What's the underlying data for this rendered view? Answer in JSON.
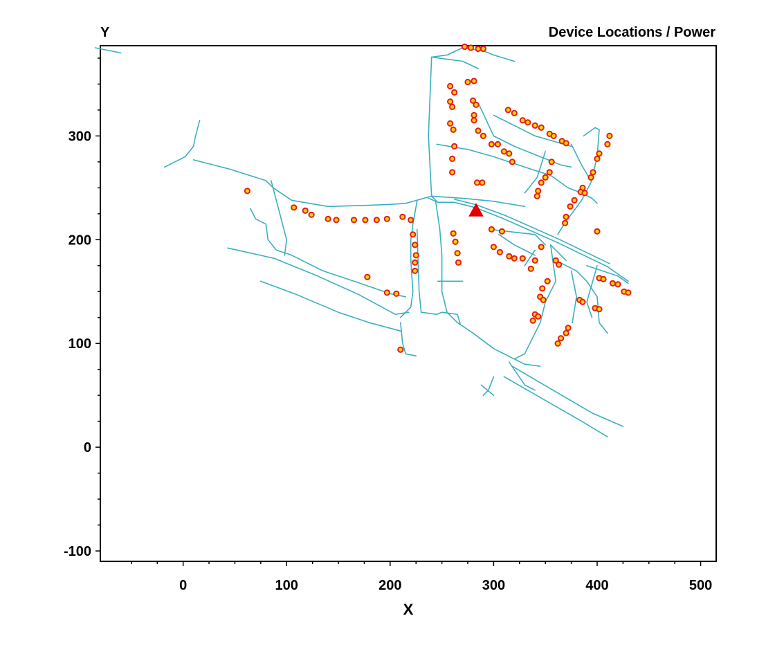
{
  "chart_data": {
    "type": "scatter",
    "title": "Device Locations / Power",
    "xlabel": "X",
    "ylabel": "Y",
    "xlim": [
      -80,
      515
    ],
    "ylim": [
      -110,
      387
    ],
    "x_ticks": [
      0,
      100,
      200,
      300,
      400,
      500
    ],
    "y_ticks": [
      -100,
      0,
      100,
      200,
      300
    ],
    "grid": false,
    "colors": {
      "network": "#3aafc0",
      "device_fill": "#ffd400",
      "device_edge": "#e21c1c",
      "source": "#e00000",
      "axis": "#000000"
    },
    "series": [
      {
        "marker": "circle",
        "points": [
          [
            272,
            386
          ],
          [
            278,
            385
          ],
          [
            285,
            384
          ],
          [
            290,
            384
          ],
          [
            275,
            352
          ],
          [
            281,
            353
          ],
          [
            258,
            348
          ],
          [
            262,
            342
          ],
          [
            280,
            334
          ],
          [
            283,
            330
          ],
          [
            281,
            320
          ],
          [
            281,
            315
          ],
          [
            258,
            333
          ],
          [
            260,
            328
          ],
          [
            258,
            312
          ],
          [
            261,
            306
          ],
          [
            262,
            290
          ],
          [
            260,
            278
          ],
          [
            260,
            265
          ],
          [
            284,
            255
          ],
          [
            289,
            255
          ],
          [
            285,
            305
          ],
          [
            290,
            300
          ],
          [
            298,
            292
          ],
          [
            304,
            292
          ],
          [
            310,
            285
          ],
          [
            315,
            283
          ],
          [
            318,
            275
          ],
          [
            314,
            325
          ],
          [
            320,
            322
          ],
          [
            328,
            315
          ],
          [
            333,
            313
          ],
          [
            340,
            310
          ],
          [
            346,
            308
          ],
          [
            354,
            302
          ],
          [
            358,
            300
          ],
          [
            366,
            295
          ],
          [
            370,
            293
          ],
          [
            412,
            300
          ],
          [
            410,
            292
          ],
          [
            402,
            283
          ],
          [
            400,
            278
          ],
          [
            396,
            265
          ],
          [
            394,
            260
          ],
          [
            386,
            250
          ],
          [
            384,
            246
          ],
          [
            388,
            245
          ],
          [
            356,
            275
          ],
          [
            354,
            265
          ],
          [
            350,
            260
          ],
          [
            346,
            255
          ],
          [
            343,
            247
          ],
          [
            342,
            242
          ],
          [
            378,
            238
          ],
          [
            374,
            232
          ],
          [
            370,
            222
          ],
          [
            369,
            216
          ],
          [
            400,
            208
          ],
          [
            62,
            247
          ],
          [
            107,
            231
          ],
          [
            118,
            228
          ],
          [
            124,
            224
          ],
          [
            140,
            220
          ],
          [
            148,
            219
          ],
          [
            165,
            219
          ],
          [
            176,
            219
          ],
          [
            187,
            219
          ],
          [
            197,
            220
          ],
          [
            212,
            222
          ],
          [
            220,
            219
          ],
          [
            222,
            205
          ],
          [
            224,
            195
          ],
          [
            225,
            185
          ],
          [
            224,
            178
          ],
          [
            224,
            170
          ],
          [
            261,
            206
          ],
          [
            263,
            198
          ],
          [
            265,
            187
          ],
          [
            266,
            178
          ],
          [
            298,
            210
          ],
          [
            308,
            208
          ],
          [
            300,
            193
          ],
          [
            306,
            188
          ],
          [
            315,
            184
          ],
          [
            320,
            182
          ],
          [
            328,
            182
          ],
          [
            336,
            172
          ],
          [
            340,
            180
          ],
          [
            346,
            193
          ],
          [
            363,
            176
          ],
          [
            360,
            180
          ],
          [
            352,
            160
          ],
          [
            347,
            153
          ],
          [
            345,
            145
          ],
          [
            348,
            142
          ],
          [
            340,
            128
          ],
          [
            343,
            126
          ],
          [
            338,
            122
          ],
          [
            372,
            115
          ],
          [
            370,
            110
          ],
          [
            365,
            105
          ],
          [
            362,
            100
          ],
          [
            383,
            142
          ],
          [
            386,
            140
          ],
          [
            398,
            134
          ],
          [
            402,
            133
          ],
          [
            402,
            163
          ],
          [
            406,
            162
          ],
          [
            415,
            158
          ],
          [
            420,
            157
          ],
          [
            426,
            150
          ],
          [
            430,
            149
          ],
          [
            178,
            164
          ],
          [
            197,
            149
          ],
          [
            206,
            148
          ],
          [
            210,
            94
          ]
        ]
      },
      {
        "marker": "triangle",
        "points": [
          [
            283,
            228
          ]
        ]
      }
    ],
    "network_lines": [
      [
        [
          16,
          315
        ],
        [
          12,
          300
        ],
        [
          10,
          290
        ],
        [
          2,
          280
        ],
        [
          -18,
          270
        ]
      ],
      [
        [
          10,
          277
        ],
        [
          45,
          268
        ],
        [
          80,
          257
        ],
        [
          87,
          250
        ],
        [
          105,
          238
        ],
        [
          140,
          232
        ],
        [
          175,
          233
        ],
        [
          200,
          234
        ],
        [
          215,
          235
        ],
        [
          240,
          242
        ],
        [
          270,
          240
        ],
        [
          300,
          237
        ],
        [
          330,
          232
        ]
      ],
      [
        [
          240,
          242
        ],
        [
          246,
          236
        ],
        [
          262,
          236
        ],
        [
          282,
          231
        ],
        [
          310,
          220
        ],
        [
          360,
          198
        ],
        [
          410,
          174
        ]
      ],
      [
        [
          262,
          239
        ],
        [
          282,
          234
        ],
        [
          312,
          223
        ],
        [
          362,
          201
        ],
        [
          412,
          177
        ]
      ],
      [
        [
          410,
          174
        ],
        [
          430,
          160
        ]
      ],
      [
        [
          240,
          242
        ],
        [
          237,
          300
        ],
        [
          240,
          376
        ],
        [
          255,
          378
        ],
        [
          270,
          385
        ],
        [
          290,
          382
        ],
        [
          300,
          378
        ],
        [
          320,
          372
        ]
      ],
      [
        [
          240,
          376
        ],
        [
          270,
          372
        ],
        [
          285,
          365
        ]
      ],
      [
        [
          245,
          292
        ],
        [
          275,
          287
        ],
        [
          300,
          280
        ],
        [
          330,
          270
        ],
        [
          355,
          262
        ],
        [
          372,
          250
        ],
        [
          385,
          245
        ],
        [
          393,
          241
        ],
        [
          395,
          240
        ],
        [
          400,
          235
        ]
      ],
      [
        [
          286,
          330
        ],
        [
          300,
          300
        ],
        [
          320,
          290
        ],
        [
          345,
          280
        ],
        [
          365,
          272
        ],
        [
          375,
          270
        ]
      ],
      [
        [
          300,
          320
        ],
        [
          340,
          300
        ],
        [
          375,
          290
        ]
      ],
      [
        [
          387,
          300
        ],
        [
          398,
          308
        ],
        [
          402,
          306
        ],
        [
          400,
          280
        ],
        [
          394,
          255
        ],
        [
          385,
          238
        ],
        [
          368,
          215
        ],
        [
          362,
          205
        ]
      ],
      [
        [
          350,
          285
        ],
        [
          342,
          260
        ],
        [
          330,
          245
        ]
      ],
      [
        [
          375,
          292
        ],
        [
          385,
          272
        ],
        [
          392,
          260
        ]
      ],
      [
        [
          226,
          237
        ],
        [
          222,
          215
        ],
        [
          220,
          200
        ],
        [
          220,
          180
        ],
        [
          222,
          150
        ],
        [
          220,
          135
        ],
        [
          215,
          130
        ],
        [
          210,
          125
        ]
      ],
      [
        [
          237,
          240
        ],
        [
          244,
          237
        ],
        [
          248,
          210
        ],
        [
          250,
          185
        ],
        [
          250,
          150
        ],
        [
          255,
          130
        ],
        [
          265,
          120
        ],
        [
          280,
          110
        ],
        [
          300,
          95
        ],
        [
          320,
          85
        ],
        [
          330,
          80
        ],
        [
          345,
          78
        ]
      ],
      [
        [
          226,
          210
        ],
        [
          228,
          150
        ],
        [
          230,
          130
        ],
        [
          245,
          128
        ],
        [
          250,
          130
        ]
      ],
      [
        [
          246,
          160
        ],
        [
          270,
          160
        ]
      ],
      [
        [
          250,
          130
        ],
        [
          265,
          128
        ],
        [
          268,
          118
        ]
      ],
      [
        [
          296,
          210
        ],
        [
          340,
          205
        ],
        [
          350,
          195
        ]
      ],
      [
        [
          305,
          205
        ],
        [
          320,
          195
        ],
        [
          340,
          185
        ]
      ],
      [
        [
          330,
          175
        ],
        [
          340,
          190
        ]
      ],
      [
        [
          355,
          195
        ],
        [
          370,
          180
        ]
      ],
      [
        [
          355,
          195
        ],
        [
          360,
          160
        ],
        [
          350,
          140
        ],
        [
          345,
          120
        ],
        [
          330,
          90
        ],
        [
          320,
          85
        ]
      ],
      [
        [
          360,
          180
        ],
        [
          380,
          170
        ],
        [
          390,
          160
        ],
        [
          400,
          145
        ],
        [
          402,
          120
        ],
        [
          410,
          110
        ]
      ],
      [
        [
          390,
          175
        ],
        [
          420,
          165
        ],
        [
          430,
          158
        ]
      ],
      [
        [
          375,
          170
        ],
        [
          380,
          145
        ],
        [
          376,
          120
        ]
      ],
      [
        [
          400,
          175
        ],
        [
          390,
          140
        ],
        [
          395,
          125
        ]
      ],
      [
        [
          -85,
          385
        ],
        [
          -60,
          380
        ]
      ],
      [
        [
          43,
          192
        ],
        [
          88,
          182
        ],
        [
          130,
          165
        ],
        [
          170,
          147
        ],
        [
          205,
          128
        ],
        [
          218,
          130
        ]
      ],
      [
        [
          75,
          160
        ],
        [
          110,
          147
        ],
        [
          150,
          130
        ],
        [
          180,
          120
        ],
        [
          210,
          112
        ]
      ],
      [
        [
          85,
          257
        ],
        [
          100,
          200
        ],
        [
          98,
          185
        ]
      ],
      [
        [
          65,
          230
        ],
        [
          70,
          220
        ],
        [
          80,
          215
        ],
        [
          82,
          200
        ],
        [
          90,
          190
        ],
        [
          105,
          185
        ],
        [
          135,
          170
        ],
        [
          165,
          160
        ],
        [
          200,
          148
        ],
        [
          215,
          145
        ]
      ],
      [
        [
          210,
          120
        ],
        [
          212,
          100
        ],
        [
          215,
          90
        ],
        [
          225,
          88
        ]
      ],
      [
        [
          315,
          82
        ],
        [
          330,
          60
        ],
        [
          340,
          55
        ]
      ],
      [
        [
          310,
          68
        ],
        [
          385,
          25
        ],
        [
          410,
          10
        ]
      ],
      [
        [
          318,
          78
        ],
        [
          395,
          33
        ],
        [
          425,
          20
        ]
      ],
      [
        [
          300,
          68
        ],
        [
          295,
          55
        ],
        [
          290,
          50
        ]
      ],
      [
        [
          288,
          60
        ],
        [
          300,
          50
        ]
      ]
    ]
  }
}
